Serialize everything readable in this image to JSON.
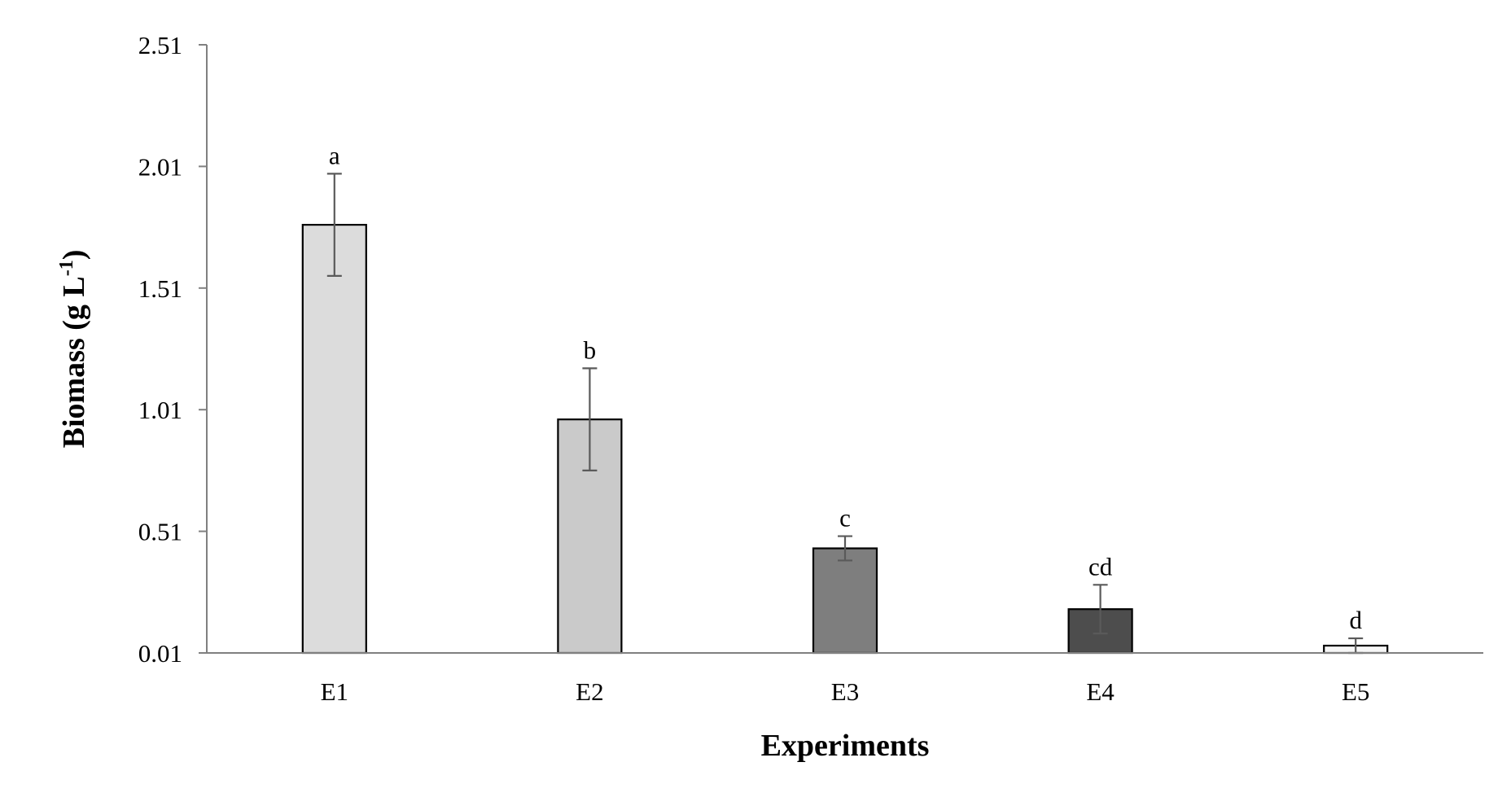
{
  "chart_data": {
    "type": "bar",
    "title": "",
    "xlabel": "Experiments",
    "ylabel": {
      "main": "Biomass (g L",
      "superscript": "-1",
      "close": ")"
    },
    "ylim": [
      0.01,
      2.51
    ],
    "yticks": [
      "0.01",
      "0.51",
      "1.01",
      "1.51",
      "2.01",
      "2.51"
    ],
    "grid": false,
    "legend": "none",
    "categories": [
      "E1",
      "E2",
      "E3",
      "E4",
      "E5"
    ],
    "values": [
      1.77,
      0.97,
      0.44,
      0.19,
      0.04
    ],
    "errors": [
      0.21,
      0.21,
      0.05,
      0.1,
      0.03
    ],
    "significance_labels": [
      "a",
      "b",
      "c",
      "cd",
      "d"
    ],
    "bar_colors": [
      "#dcdcdc",
      "#cacaca",
      "#7e7e7e",
      "#4d4d4d",
      "#f7f7f7"
    ]
  }
}
